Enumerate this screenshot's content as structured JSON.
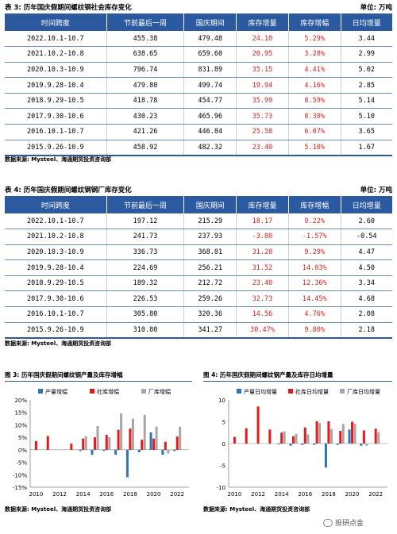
{
  "table3": {
    "title": "表 3: 历年国庆假期间螺纹钢社会库存变化",
    "unit": "单位: 万吨",
    "headers": [
      "时间跨度",
      "节前最后一周",
      "国庆期间",
      "库存增量",
      "库存增幅",
      "日均增量"
    ],
    "rows": [
      [
        "2022.10.1-10.7",
        "455.38",
        "479.48",
        "24.10",
        "5.29%",
        "3.44"
      ],
      [
        "2021.10.2-10.8",
        "638.65",
        "659.60",
        "20.95",
        "3.28%",
        "2.99"
      ],
      [
        "2020.10.3-10.9",
        "796.74",
        "831.89",
        "35.15",
        "4.41%",
        "5.02"
      ],
      [
        "2019.9.28-10.4",
        "479.80",
        "499.74",
        "19.94",
        "4.16%",
        "2.85"
      ],
      [
        "2018.9.29-10.5",
        "418.78",
        "454.77",
        "35.99",
        "8.59%",
        "5.14"
      ],
      [
        "2017.9.30-10.6",
        "430.23",
        "465.96",
        "35.73",
        "8.30%",
        "5.10"
      ],
      [
        "2016.10.1-10.7",
        "421.26",
        "446.84",
        "25.58",
        "6.07%",
        "3.65"
      ],
      [
        "2015.9.26-10.9",
        "458.92",
        "482.32",
        "23.40",
        "5.10%",
        "1.67"
      ]
    ],
    "source": "数据来源: Mysteel、海通期货投资咨询部"
  },
  "table4": {
    "title": "表 4: 历年国庆假期间螺纹钢钢厂库存变化",
    "unit": "单位: 万吨",
    "headers": [
      "时间跨度",
      "节前最后一周",
      "国庆期间",
      "库存增量",
      "库存增幅",
      "日均增量"
    ],
    "rows": [
      [
        "2022.10.1-10.7",
        "197.12",
        "215.29",
        "18.17",
        "9.22%",
        "2.60"
      ],
      [
        "2021.10.2-10.8",
        "241.73",
        "237.93",
        "-3.80",
        "-1.57%",
        "-0.54"
      ],
      [
        "2020.10.3-10.9",
        "336.73",
        "368.01",
        "31.28",
        "9.29%",
        "4.47"
      ],
      [
        "2019.9.28-10.4",
        "224.69",
        "256.21",
        "31.52",
        "14.03%",
        "4.50"
      ],
      [
        "2018.9.29-10.5",
        "189.32",
        "212.72",
        "23.40",
        "12.36%",
        "3.34"
      ],
      [
        "2017.9.30-10.6",
        "226.53",
        "259.26",
        "32.73",
        "14.45%",
        "4.68"
      ],
      [
        "2016.10.1-10.7",
        "305.80",
        "320.36",
        "14.56",
        "4.76%",
        "2.08"
      ],
      [
        "2015.9.26-10.9",
        "310.80",
        "341.27",
        "30.47%",
        "9.80%",
        "2.18"
      ]
    ],
    "source": "数据来源: Mysteel、海通期货投资咨询部"
  },
  "colors": {
    "header_bg": "#2c5aa0",
    "red_text": "#e0201c",
    "prod": "#2e75b6",
    "social": "#e8191b",
    "factory": "#a6a6a6"
  },
  "chart_data": [
    {
      "type": "bar",
      "title": "图 3: 历年国庆假期间螺纹钢产量及库存增幅",
      "x": [
        2010,
        2011,
        2012,
        2013,
        2014,
        2015,
        2016,
        2017,
        2018,
        2019,
        2020,
        2021,
        2022
      ],
      "series": [
        {
          "name": "产量增幅",
          "values": [
            0,
            0,
            0,
            0,
            -0.5,
            -2,
            -0.5,
            -2,
            -11,
            -1,
            7,
            -2,
            -0.5
          ]
        },
        {
          "name": "社库增幅",
          "values": [
            3.5,
            5.5,
            0,
            2.5,
            4.5,
            5,
            6,
            8,
            8.5,
            4,
            4.5,
            3.2,
            5.3
          ]
        },
        {
          "name": "厂库增幅",
          "values": [
            0,
            0,
            0,
            0,
            5.5,
            9.5,
            5,
            14.5,
            12.5,
            14,
            9.3,
            -1.5,
            9.2
          ]
        }
      ],
      "xticks": [
        "2010",
        "2012",
        "2014",
        "2016",
        "2018",
        "2020",
        "2022"
      ],
      "yticks": [
        "-15%",
        "-10%",
        "-5%",
        "0%",
        "5%",
        "10%",
        "15%",
        "20%"
      ],
      "ylim": [
        -15,
        20
      ],
      "legend": "top"
    },
    {
      "type": "bar",
      "title": "图 4: 历年国庆假期间螺纹钢产量及库存日均增量",
      "x": [
        2010,
        2011,
        2012,
        2013,
        2014,
        2015,
        2016,
        2017,
        2018,
        2019,
        2020,
        2021,
        2022
      ],
      "series": [
        {
          "name": "产量日均增量",
          "values": [
            0,
            0,
            0,
            0,
            -0.2,
            -0.5,
            -0.3,
            -0.3,
            -5.5,
            -0.3,
            3.2,
            -0.5,
            0
          ]
        },
        {
          "name": "社库日均增量",
          "values": [
            1.5,
            3.5,
            8.5,
            3.2,
            2.5,
            1.7,
            3.7,
            5.1,
            5.1,
            2.9,
            5,
            3,
            3.4
          ]
        },
        {
          "name": "厂库日均增量",
          "values": [
            0,
            0,
            0,
            0,
            2.8,
            2.2,
            2.1,
            4.7,
            3.3,
            4.5,
            4.5,
            -0.5,
            2.6
          ]
        }
      ],
      "xticks": [
        "2010",
        "2012",
        "2014",
        "2016",
        "2018",
        "2020",
        "2022"
      ],
      "yticks": [
        "-10",
        "-5",
        "0",
        "5",
        "10"
      ],
      "ylim": [
        -10,
        10
      ],
      "legend": "top"
    }
  ],
  "chart_source": "数据来源: Mysteel、海通期货投资咨询部",
  "watermark": "投研点金"
}
